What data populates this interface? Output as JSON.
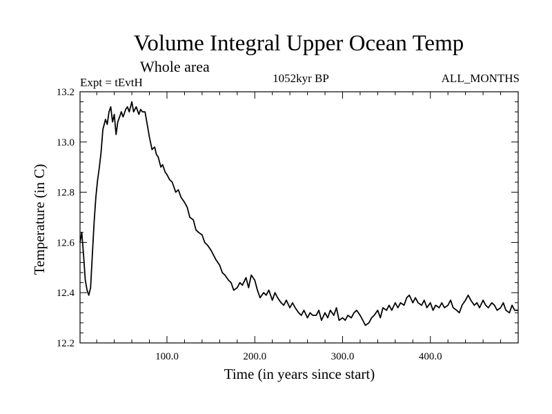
{
  "chart_data": {
    "type": "line",
    "title": "Volume Integral Upper Ocean Temp",
    "subtitle": "Whole area",
    "annotations": {
      "left": "Expt = tEvtH",
      "center": "1052kyr BP",
      "right": "ALL_MONTHS"
    },
    "xlabel": "Time (in years since start)",
    "ylabel": "Temperature (in C)",
    "xlim": [
      1,
      500
    ],
    "ylim": [
      12.2,
      13.2
    ],
    "x_ticks": [
      100,
      200,
      300,
      400
    ],
    "x_tick_labels": [
      "100.0",
      "200.0",
      "300.0",
      "400.0"
    ],
    "y_ticks": [
      12.2,
      12.4,
      12.6,
      12.8,
      13.0,
      13.2
    ],
    "y_tick_labels": [
      "12.2",
      "12.4",
      "12.6",
      "12.8",
      "13.0",
      "13.2"
    ],
    "series": [
      {
        "name": "Whole area",
        "color": "#000000",
        "x": [
          1,
          3,
          5,
          7,
          9,
          11,
          13,
          15,
          17,
          19,
          21,
          23,
          25,
          27,
          30,
          32,
          34,
          36,
          38,
          40,
          42,
          44,
          46,
          48,
          50,
          53,
          55,
          57,
          60,
          62,
          65,
          68,
          70,
          72,
          75,
          78,
          80,
          83,
          86,
          88,
          90,
          93,
          95,
          98,
          100,
          103,
          106,
          110,
          113,
          116,
          120,
          123,
          126,
          130,
          133,
          136,
          140,
          143,
          146,
          150,
          153,
          156,
          160,
          163,
          166,
          170,
          173,
          176,
          180,
          183,
          186,
          190,
          193,
          196,
          200,
          203,
          206,
          210,
          213,
          216,
          220,
          223,
          226,
          230,
          233,
          236,
          240,
          243,
          246,
          250,
          253,
          256,
          260,
          263,
          266,
          270,
          273,
          276,
          280,
          283,
          286,
          290,
          293,
          296,
          300,
          303,
          306,
          310,
          313,
          316,
          320,
          323,
          326,
          330,
          333,
          336,
          340,
          343,
          346,
          350,
          353,
          356,
          360,
          363,
          366,
          370,
          373,
          376,
          380,
          383,
          386,
          390,
          393,
          396,
          400,
          403,
          406,
          410,
          413,
          416,
          420,
          423,
          426,
          430,
          433,
          436,
          440,
          443,
          446,
          450,
          453,
          456,
          460,
          463,
          466,
          470,
          473,
          476,
          480,
          483,
          486,
          490,
          493,
          496,
          500
        ],
        "y": [
          12.6,
          12.64,
          12.55,
          12.45,
          12.41,
          12.39,
          12.42,
          12.55,
          12.68,
          12.78,
          12.85,
          12.9,
          12.96,
          13.05,
          13.09,
          13.07,
          13.12,
          13.14,
          13.08,
          13.11,
          13.03,
          13.08,
          13.1,
          13.12,
          13.1,
          13.13,
          13.14,
          13.12,
          13.16,
          13.12,
          13.14,
          13.11,
          13.13,
          13.12,
          13.12,
          13.06,
          13.02,
          12.97,
          12.98,
          12.95,
          12.94,
          12.9,
          12.91,
          12.88,
          12.87,
          12.85,
          12.84,
          12.8,
          12.81,
          12.78,
          12.76,
          12.74,
          12.7,
          12.69,
          12.65,
          12.64,
          12.63,
          12.6,
          12.59,
          12.57,
          12.55,
          12.53,
          12.51,
          12.48,
          12.47,
          12.45,
          12.44,
          12.41,
          12.42,
          12.44,
          12.43,
          12.46,
          12.42,
          12.47,
          12.45,
          12.41,
          12.38,
          12.4,
          12.39,
          12.41,
          12.37,
          12.4,
          12.38,
          12.36,
          12.35,
          12.37,
          12.34,
          12.36,
          12.34,
          12.32,
          12.31,
          12.33,
          12.3,
          12.32,
          12.31,
          12.31,
          12.33,
          12.29,
          12.32,
          12.3,
          12.33,
          12.31,
          12.34,
          12.29,
          12.3,
          12.29,
          12.31,
          12.3,
          12.32,
          12.33,
          12.31,
          12.29,
          12.27,
          12.28,
          12.3,
          12.31,
          12.33,
          12.3,
          12.34,
          12.33,
          12.35,
          12.33,
          12.36,
          12.34,
          12.36,
          12.35,
          12.38,
          12.39,
          12.36,
          12.38,
          12.36,
          12.35,
          12.37,
          12.34,
          12.36,
          12.33,
          12.35,
          12.34,
          12.36,
          12.34,
          12.35,
          12.37,
          12.34,
          12.33,
          12.32,
          12.35,
          12.37,
          12.39,
          12.37,
          12.35,
          12.36,
          12.34,
          12.37,
          12.35,
          12.34,
          12.36,
          12.35,
          12.33,
          12.34,
          12.36,
          12.33,
          12.32,
          12.35,
          12.33,
          12.33
        ]
      }
    ]
  }
}
